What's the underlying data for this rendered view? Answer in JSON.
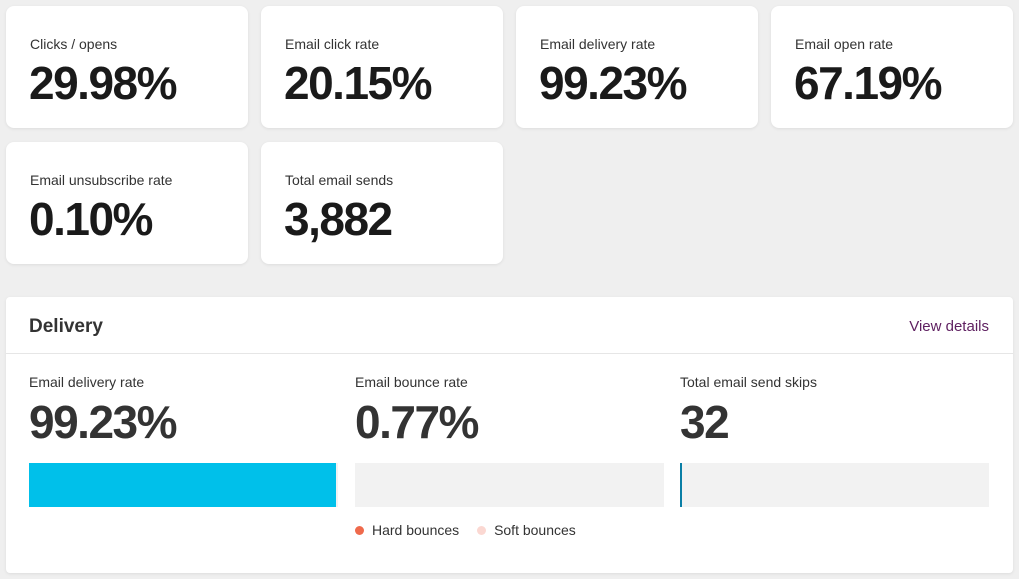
{
  "stats": [
    {
      "label": "Clicks / opens",
      "value": "29.98%"
    },
    {
      "label": "Email click rate",
      "value": "20.15%"
    },
    {
      "label": "Email delivery rate",
      "value": "99.23%"
    },
    {
      "label": "Email open rate",
      "value": "67.19%"
    },
    {
      "label": "Email unsubscribe rate",
      "value": "0.10%"
    },
    {
      "label": "Total email sends",
      "value": "3,882"
    }
  ],
  "delivery": {
    "title": "Delivery",
    "view_details": "View details",
    "metrics": [
      {
        "label": "Email delivery rate",
        "value": "99.23%",
        "bar_fraction": 0.9923,
        "bar_color": "#00c0ea"
      },
      {
        "label": "Email bounce rate",
        "value": "0.77%",
        "bar_fraction": 0.0077,
        "bar_color": "#f2f2f2"
      },
      {
        "label": "Total email send skips",
        "value": "32",
        "bar_fraction": 0.0,
        "bar_color": "#0a7fa6"
      }
    ],
    "legend": [
      {
        "label": "Hard bounces",
        "color": "#ef6a4c"
      },
      {
        "label": "Soft bounces",
        "color": "#fbd8d2"
      }
    ]
  }
}
